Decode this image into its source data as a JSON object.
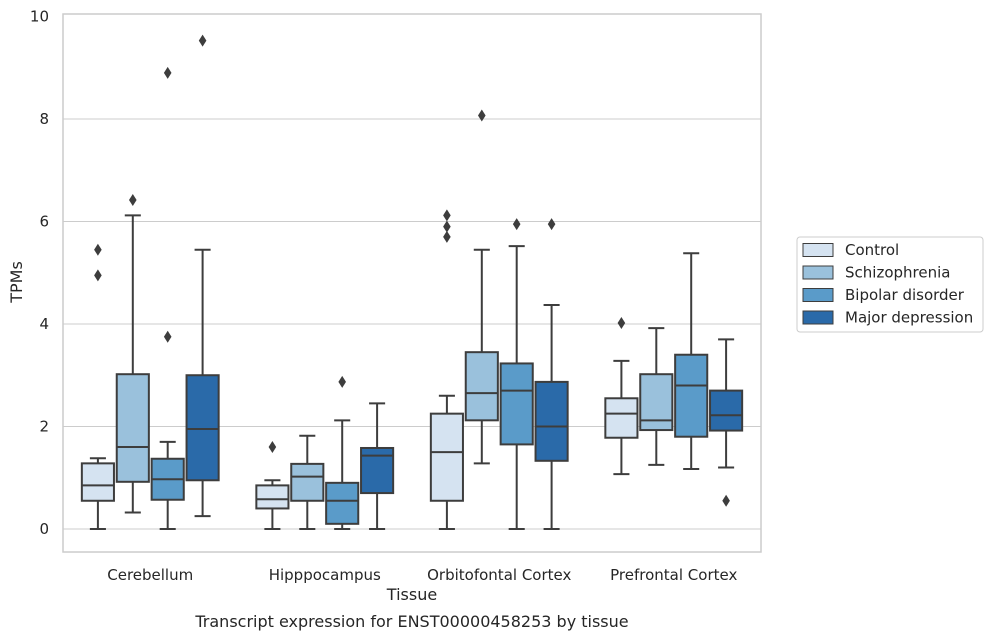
{
  "chart_data": {
    "type": "box",
    "caption": "Transcript expression for ENST00000458253 by tissue",
    "xlabel": "Tissue",
    "ylabel": "TPMs",
    "ylim": [
      -0.45,
      10.05
    ],
    "yticks": [
      0,
      2,
      4,
      6,
      8,
      10
    ],
    "grid": "horizontal",
    "legend_position": "right",
    "categories": [
      "Cerebellum",
      "Hipppocampus",
      "Orbitofontal Cortex",
      "Prefrontal Cortex"
    ],
    "series": [
      {
        "name": "Control",
        "color": "#d5e3f1",
        "boxes": [
          {
            "whislo": 0.0,
            "q1": 0.55,
            "med": 0.85,
            "q3": 1.28,
            "whishi": 1.38,
            "fliers": [
              4.95,
              5.45
            ]
          },
          {
            "whislo": 0.0,
            "q1": 0.4,
            "med": 0.58,
            "q3": 0.85,
            "whishi": 0.95,
            "fliers": [
              1.6
            ]
          },
          {
            "whislo": 0.0,
            "q1": 0.55,
            "med": 1.5,
            "q3": 2.25,
            "whishi": 2.6,
            "fliers": [
              5.7,
              5.9,
              6.12
            ]
          },
          {
            "whislo": 1.07,
            "q1": 1.78,
            "med": 2.25,
            "q3": 2.55,
            "whishi": 3.28,
            "fliers": [
              4.02
            ]
          }
        ]
      },
      {
        "name": "Schizophrenia",
        "color": "#9ac1dc",
        "boxes": [
          {
            "whislo": 0.32,
            "q1": 0.92,
            "med": 1.6,
            "q3": 3.02,
            "whishi": 6.12,
            "fliers": [
              6.42
            ]
          },
          {
            "whislo": 0.0,
            "q1": 0.55,
            "med": 1.02,
            "q3": 1.27,
            "whishi": 1.82,
            "fliers": []
          },
          {
            "whislo": 1.28,
            "q1": 2.12,
            "med": 2.65,
            "q3": 3.45,
            "whishi": 5.45,
            "fliers": [
              8.07
            ]
          },
          {
            "whislo": 1.25,
            "q1": 1.93,
            "med": 2.12,
            "q3": 3.02,
            "whishi": 3.92,
            "fliers": []
          }
        ]
      },
      {
        "name": "Bipolar disorder",
        "color": "#5a9bc9",
        "boxes": [
          {
            "whislo": 0.0,
            "q1": 0.57,
            "med": 0.97,
            "q3": 1.37,
            "whishi": 1.7,
            "fliers": [
              3.75,
              8.9
            ]
          },
          {
            "whislo": 0.0,
            "q1": 0.1,
            "med": 0.55,
            "q3": 0.9,
            "whishi": 2.12,
            "fliers": [
              2.87
            ]
          },
          {
            "whislo": 0.0,
            "q1": 1.65,
            "med": 2.7,
            "q3": 3.23,
            "whishi": 5.52,
            "fliers": [
              5.95
            ]
          },
          {
            "whislo": 1.17,
            "q1": 1.8,
            "med": 2.8,
            "q3": 3.4,
            "whishi": 5.38,
            "fliers": []
          }
        ]
      },
      {
        "name": "Major depression",
        "color": "#2a6aa9",
        "boxes": [
          {
            "whislo": 0.25,
            "q1": 0.95,
            "med": 1.95,
            "q3": 3.0,
            "whishi": 5.45,
            "fliers": [
              9.53
            ]
          },
          {
            "whislo": 0.0,
            "q1": 0.7,
            "med": 1.43,
            "q3": 1.58,
            "whishi": 2.45,
            "fliers": []
          },
          {
            "whislo": 0.0,
            "q1": 1.33,
            "med": 2.0,
            "q3": 2.87,
            "whishi": 4.37,
            "fliers": [
              5.95
            ]
          },
          {
            "whislo": 1.2,
            "q1": 1.92,
            "med": 2.22,
            "q3": 2.7,
            "whishi": 3.7,
            "fliers": [
              0.55
            ]
          }
        ]
      }
    ]
  }
}
